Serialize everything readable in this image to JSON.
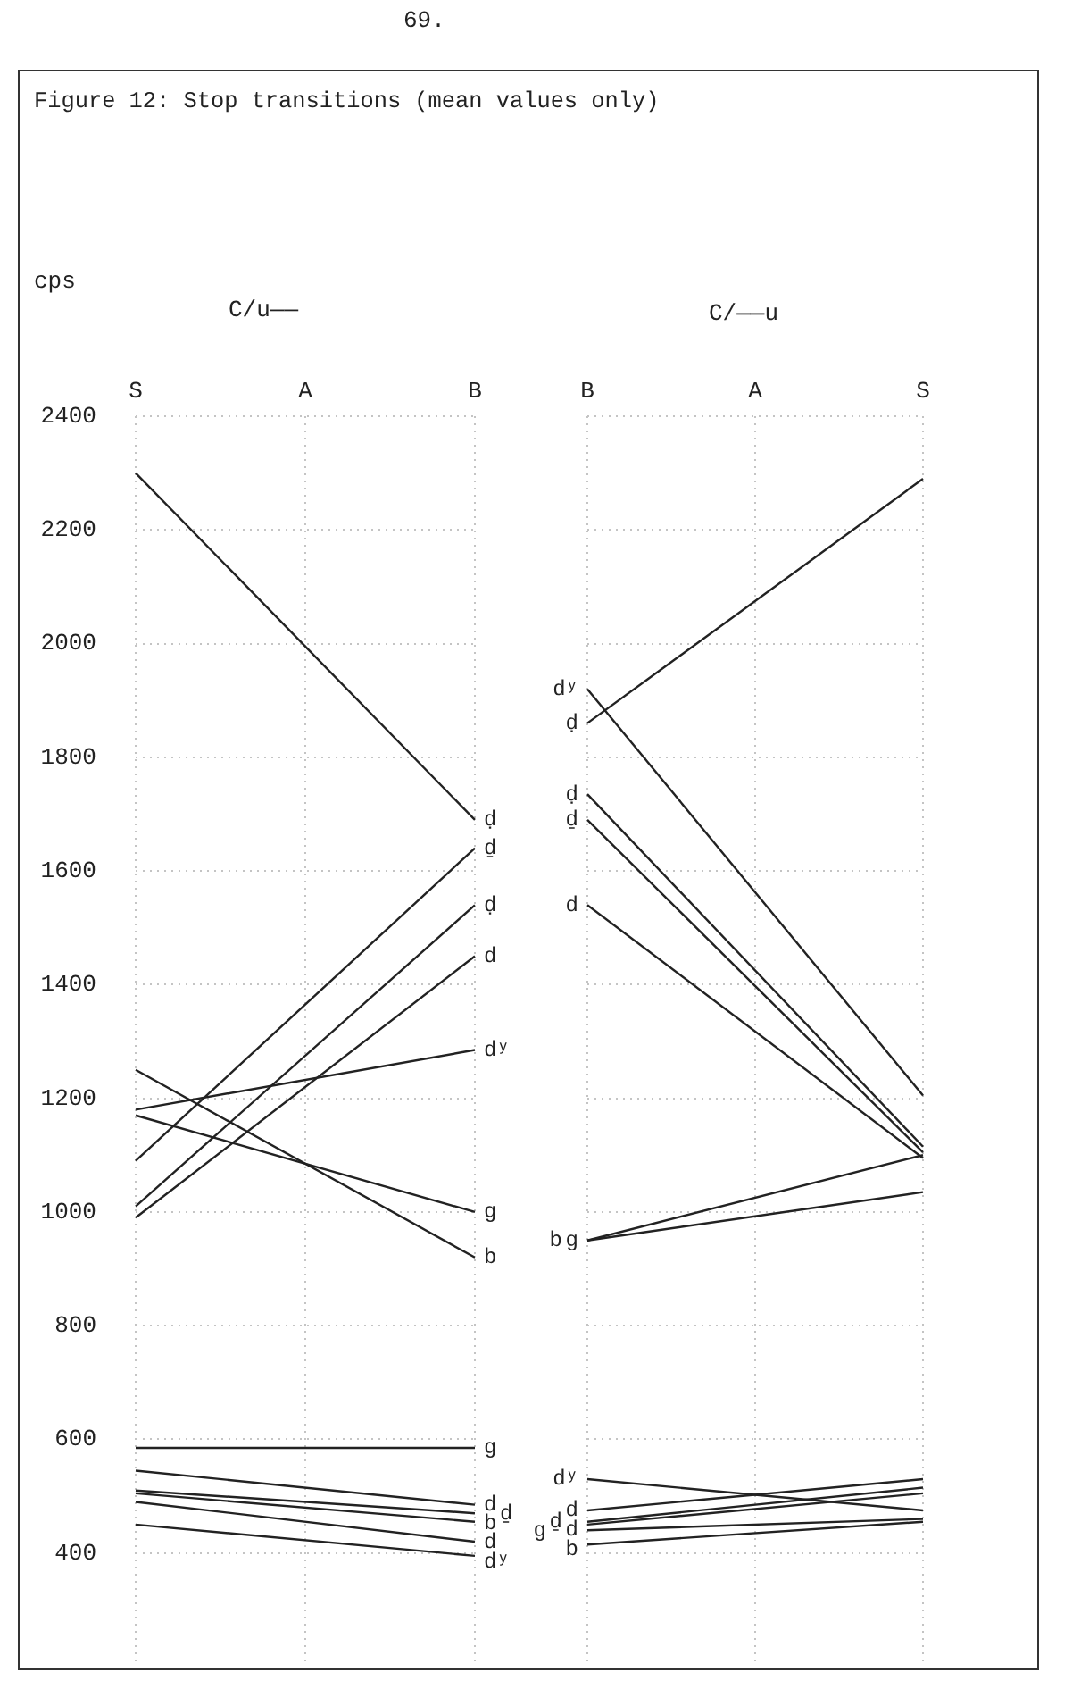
{
  "chart_data": [
    {
      "type": "line",
      "title": "Figure 12: Stop transitions (mean values only)",
      "subtitle": "C/u——",
      "ylabel": "cps",
      "annotations": [
        "69."
      ],
      "categories": [
        "S",
        "A",
        "B"
      ],
      "ylim": [
        200,
        2400
      ],
      "yticks": [
        400,
        600,
        800,
        1000,
        1200,
        1400,
        1600,
        1800,
        2000,
        2200,
        2400
      ],
      "grid": true,
      "series": [
        {
          "name": "ḍ",
          "color": "#222222",
          "x": [
            "S",
            "B"
          ],
          "values": [
            2300,
            1690
          ]
        },
        {
          "name": "ḏ",
          "color": "#222222",
          "x": [
            "S",
            "B"
          ],
          "values": [
            1090,
            1640
          ]
        },
        {
          "name": "ḍ",
          "color": "#222222",
          "x": [
            "S",
            "B"
          ],
          "values": [
            1010,
            1540
          ]
        },
        {
          "name": "d",
          "color": "#222222",
          "x": [
            "S",
            "B"
          ],
          "values": [
            990,
            1450
          ]
        },
        {
          "name": "dʸ",
          "color": "#222222",
          "x": [
            "S",
            "B"
          ],
          "values": [
            1180,
            1285
          ]
        },
        {
          "name": "g",
          "color": "#222222",
          "x": [
            "S",
            "B"
          ],
          "values": [
            1170,
            1000
          ]
        },
        {
          "name": "b",
          "color": "#222222",
          "x": [
            "S",
            "B"
          ],
          "values": [
            1250,
            920
          ]
        },
        {
          "name": "g",
          "color": "#222222",
          "x": [
            "S",
            "B"
          ],
          "values": [
            585,
            585
          ]
        },
        {
          "name": "d",
          "color": "#222222",
          "x": [
            "S",
            "B"
          ],
          "values": [
            545,
            485
          ]
        },
        {
          "name": "ḏ",
          "color": "#222222",
          "x": [
            "S",
            "B"
          ],
          "values": [
            510,
            470
          ]
        },
        {
          "name": "b",
          "color": "#222222",
          "x": [
            "S",
            "B"
          ],
          "values": [
            505,
            455
          ]
        },
        {
          "name": "d",
          "color": "#222222",
          "x": [
            "S",
            "B"
          ],
          "values": [
            490,
            420
          ]
        },
        {
          "name": "dʸ",
          "color": "#222222",
          "x": [
            "S",
            "B"
          ],
          "values": [
            450,
            395
          ]
        }
      ]
    },
    {
      "type": "line",
      "subtitle": "C/——u",
      "categories": [
        "B",
        "A",
        "S"
      ],
      "ylim": [
        200,
        2400
      ],
      "yticks": [
        400,
        600,
        800,
        1000,
        1200,
        1400,
        1600,
        1800,
        2000,
        2200,
        2400
      ],
      "tick_labels": "x",
      "grid": true,
      "series": [
        {
          "name": "dʸ",
          "color": "#222222",
          "x": [
            "B",
            "S"
          ],
          "values": [
            1920,
            1205
          ]
        },
        {
          "name": "ḍ",
          "color": "#222222",
          "x": [
            "B",
            "S"
          ],
          "values": [
            1860,
            2290
          ]
        },
        {
          "name": "ḍ",
          "color": "#222222",
          "x": [
            "B",
            "S"
          ],
          "values": [
            1735,
            1115
          ]
        },
        {
          "name": "ḏ",
          "color": "#222222",
          "x": [
            "B",
            "S"
          ],
          "values": [
            1690,
            1105
          ]
        },
        {
          "name": "d",
          "color": "#222222",
          "x": [
            "B",
            "S"
          ],
          "values": [
            1540,
            1095
          ]
        },
        {
          "name": "g",
          "color": "#222222",
          "x": [
            "B",
            "S"
          ],
          "values": [
            950,
            1100
          ]
        },
        {
          "name": "b",
          "color": "#222222",
          "x": [
            "B",
            "S"
          ],
          "values": [
            950,
            1035
          ]
        },
        {
          "name": "dʸ",
          "color": "#222222",
          "x": [
            "B",
            "S"
          ],
          "values": [
            530,
            475
          ]
        },
        {
          "name": "d",
          "color": "#222222",
          "x": [
            "B",
            "S"
          ],
          "values": [
            475,
            530
          ]
        },
        {
          "name": "ḏ",
          "color": "#222222",
          "x": [
            "B",
            "S"
          ],
          "values": [
            455,
            515
          ]
        },
        {
          "name": "d",
          "color": "#222222",
          "x": [
            "B",
            "S"
          ],
          "values": [
            450,
            505
          ]
        },
        {
          "name": "g",
          "color": "#222222",
          "x": [
            "B",
            "S"
          ],
          "values": [
            440,
            460
          ]
        },
        {
          "name": "b",
          "color": "#222222",
          "x": [
            "B",
            "S"
          ],
          "values": [
            415,
            455
          ]
        }
      ]
    }
  ]
}
